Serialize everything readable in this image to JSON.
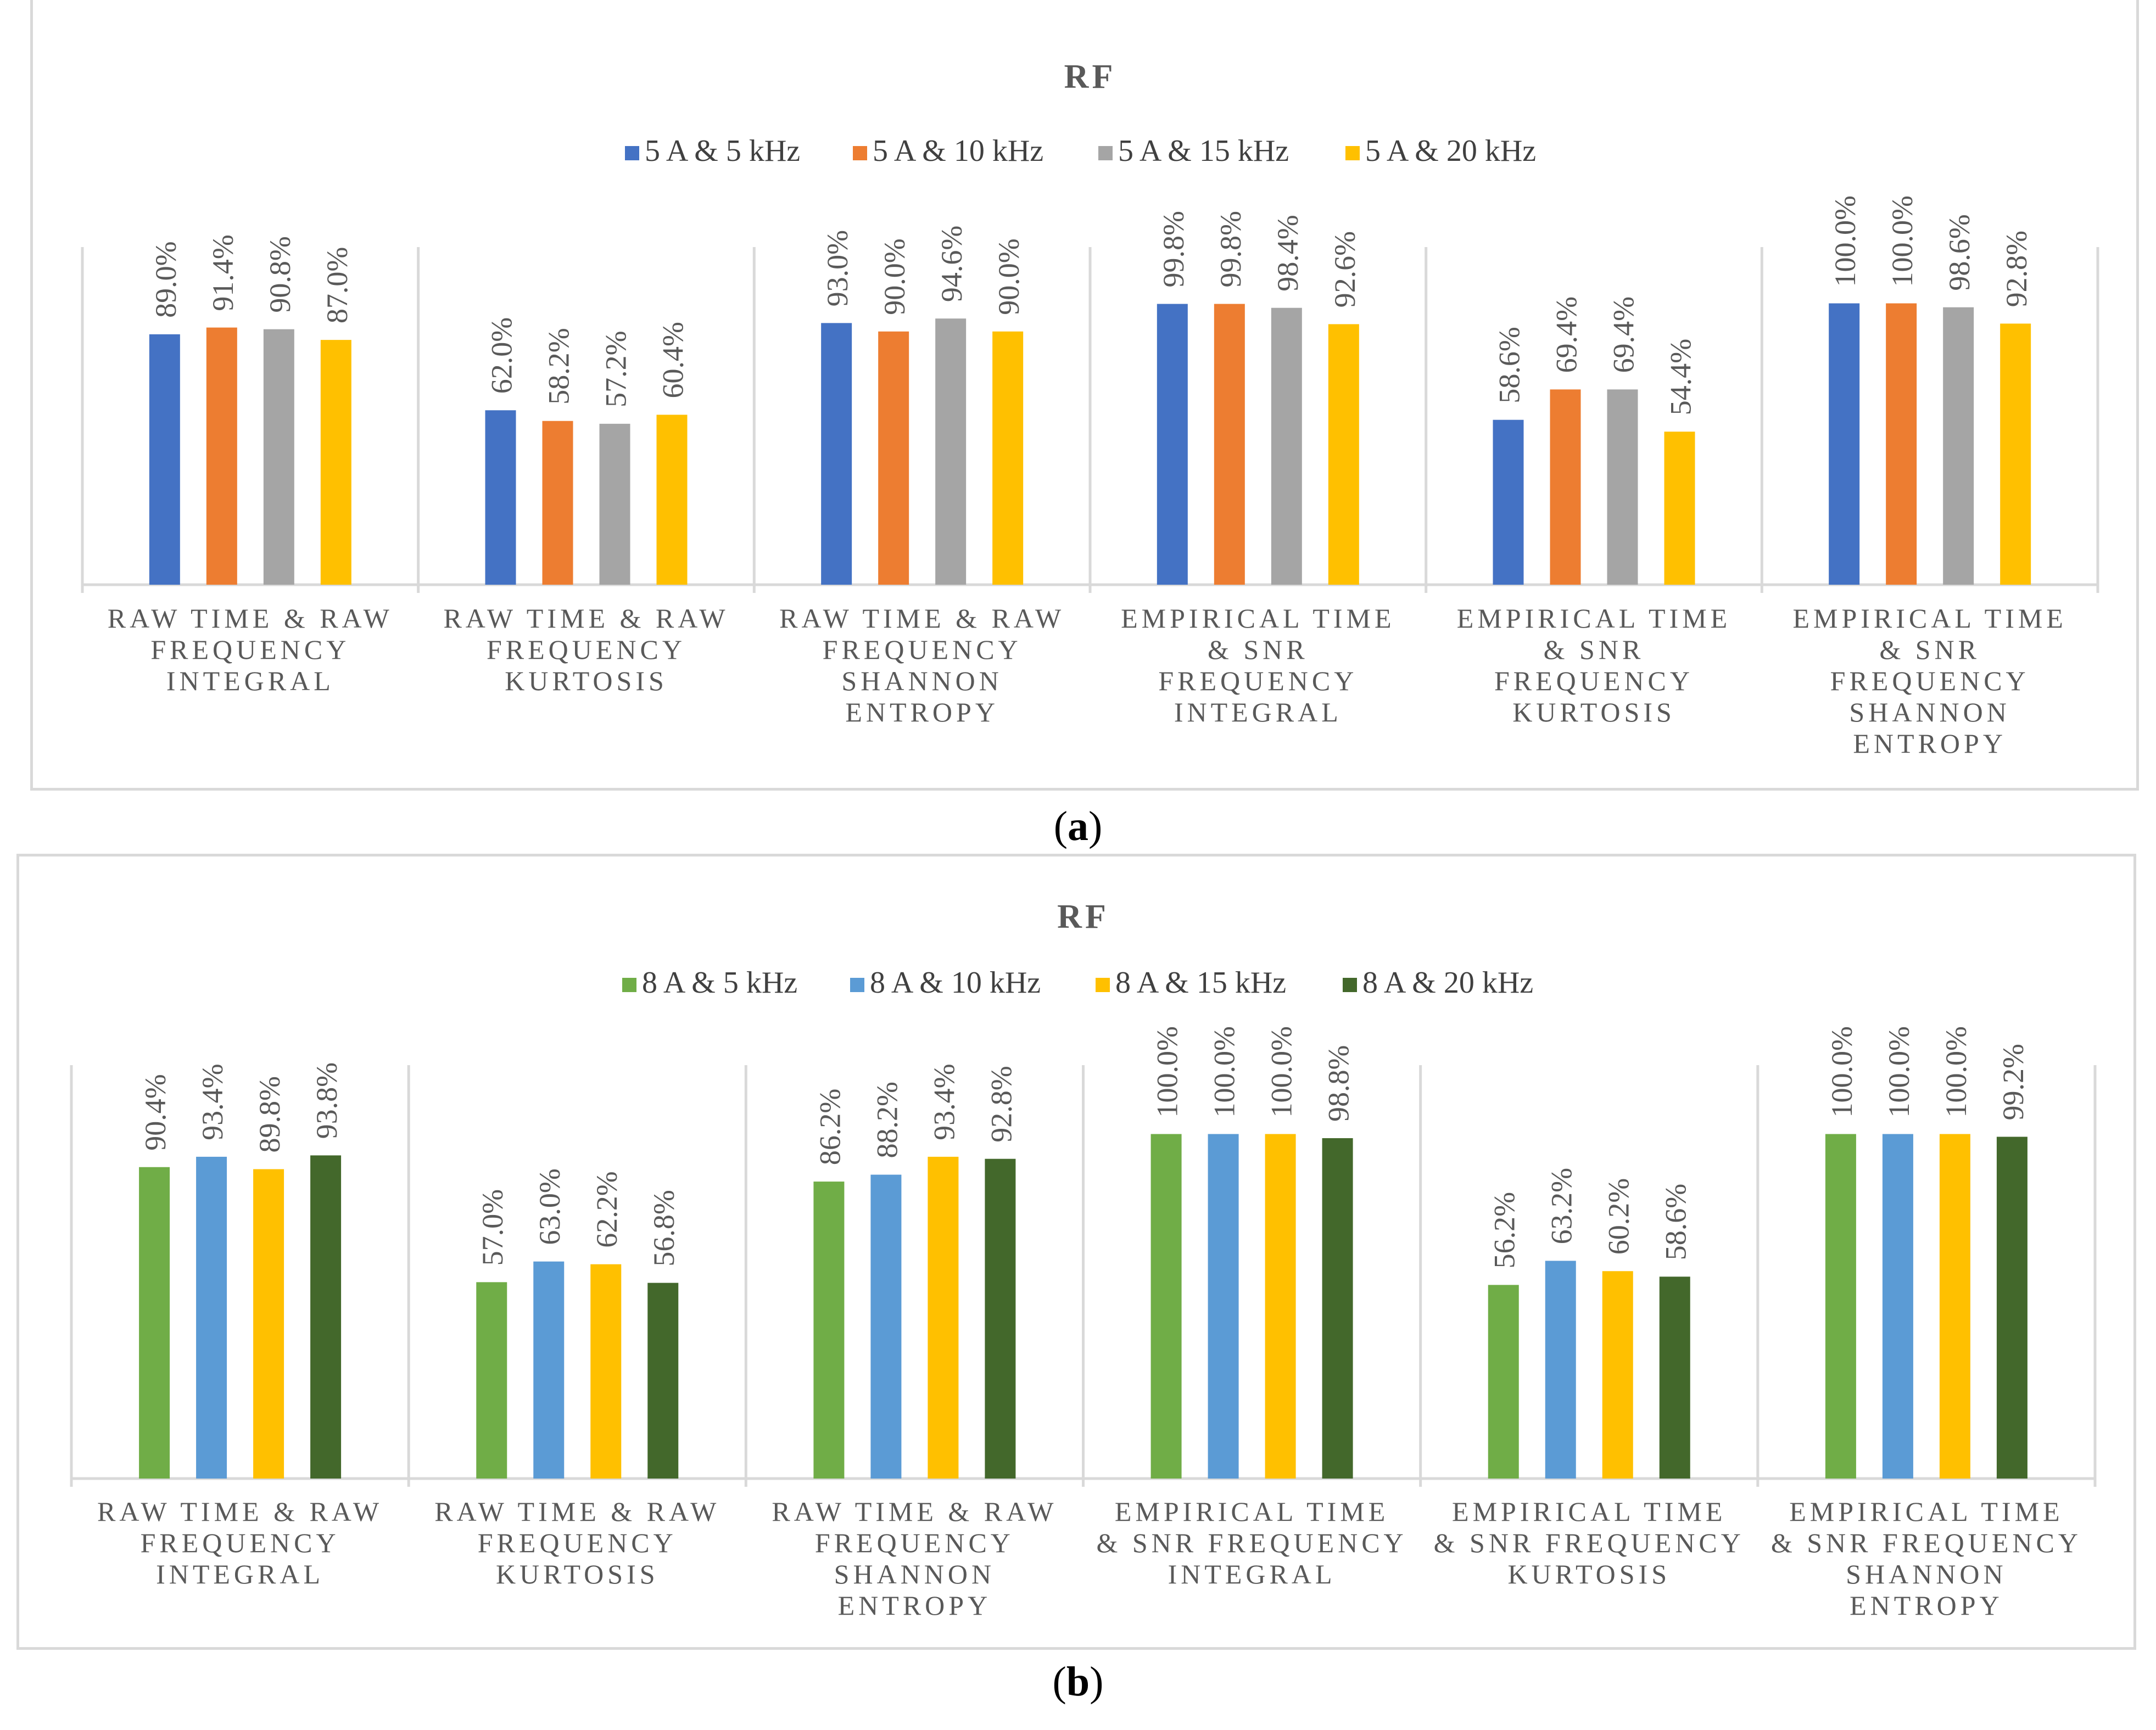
{
  "captions": [
    "a",
    "b"
  ],
  "chart_data": [
    {
      "type": "bar",
      "title": "RF",
      "categories": [
        [
          "RAW TIME & RAW",
          "FREQUENCY",
          "INTEGRAL"
        ],
        [
          "RAW TIME & RAW",
          "FREQUENCY",
          "KURTOSIS"
        ],
        [
          "RAW TIME & RAW",
          "FREQUENCY",
          "SHANNON",
          "ENTROPY"
        ],
        [
          "EMPIRICAL TIME",
          "& SNR",
          "FREQUENCY",
          "INTEGRAL"
        ],
        [
          "EMPIRICAL TIME",
          "& SNR",
          "FREQUENCY",
          "KURTOSIS"
        ],
        [
          "EMPIRICAL TIME",
          "& SNR",
          "FREQUENCY",
          "SHANNON",
          "ENTROPY"
        ]
      ],
      "series": [
        {
          "name": "5 A & 5 kHz",
          "color": "#4472c4",
          "values": [
            89.0,
            62.0,
            93.0,
            99.8,
            58.6,
            100.0
          ]
        },
        {
          "name": "5 A & 10 kHz",
          "color": "#ed7d31",
          "values": [
            91.4,
            58.2,
            90.0,
            99.8,
            69.4,
            100.0
          ]
        },
        {
          "name": "5 A & 15 kHz",
          "color": "#a5a5a5",
          "values": [
            90.8,
            57.2,
            94.6,
            98.4,
            69.4,
            98.6
          ]
        },
        {
          "name": "5 A & 20 kHz",
          "color": "#ffc000",
          "values": [
            87.0,
            60.4,
            90.0,
            92.6,
            54.4,
            92.8
          ]
        }
      ],
      "ylim": [
        0,
        120
      ],
      "xlabel": "",
      "ylabel": "",
      "legend": "top"
    },
    {
      "type": "bar",
      "title": "RF",
      "categories": [
        [
          "RAW TIME & RAW",
          "FREQUENCY",
          "INTEGRAL"
        ],
        [
          "RAW TIME & RAW",
          "FREQUENCY",
          "KURTOSIS"
        ],
        [
          "RAW TIME & RAW",
          "FREQUENCY",
          "SHANNON",
          "ENTROPY"
        ],
        [
          "EMPIRICAL TIME",
          "& SNR FREQUENCY",
          "INTEGRAL"
        ],
        [
          "EMPIRICAL TIME",
          "& SNR FREQUENCY",
          "KURTOSIS"
        ],
        [
          "EMPIRICAL TIME",
          "& SNR FREQUENCY",
          "SHANNON",
          "ENTROPY"
        ]
      ],
      "series": [
        {
          "name": "8 A & 5 kHz",
          "color": "#70ad47",
          "values": [
            90.4,
            57.0,
            86.2,
            100.0,
            56.2,
            100.0
          ]
        },
        {
          "name": "8 A & 10 kHz",
          "color": "#5b9bd5",
          "values": [
            93.4,
            63.0,
            88.2,
            100.0,
            63.2,
            100.0
          ]
        },
        {
          "name": "8 A & 15 kHz",
          "color": "#ffc000",
          "values": [
            89.8,
            62.2,
            93.4,
            100.0,
            60.2,
            100.0
          ]
        },
        {
          "name": "8 A & 20 kHz",
          "color": "#43682b",
          "values": [
            93.8,
            56.8,
            92.8,
            98.8,
            58.6,
            99.2
          ]
        }
      ],
      "ylim": [
        0,
        120
      ],
      "xlabel": "",
      "ylabel": "",
      "legend": "top"
    }
  ]
}
